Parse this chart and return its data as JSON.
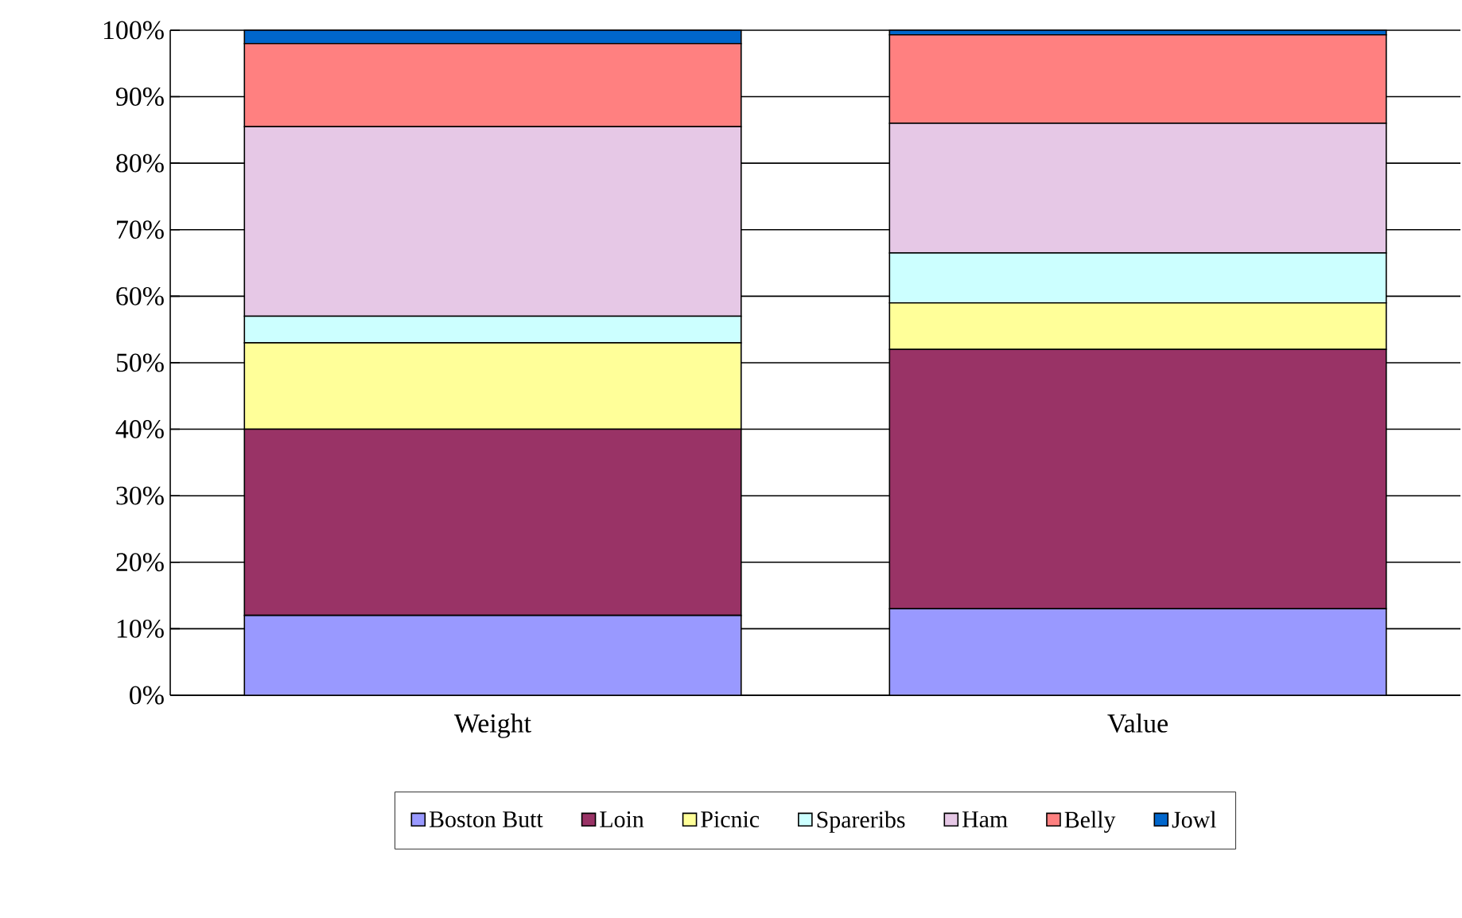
{
  "chart_data": {
    "type": "bar",
    "stacked": true,
    "categories": [
      "Weight",
      "Value"
    ],
    "series": [
      {
        "name": "Boston Butt",
        "color": "#9999ff",
        "values": [
          12,
          13
        ]
      },
      {
        "name": "Loin",
        "color": "#993366",
        "values": [
          28,
          39
        ]
      },
      {
        "name": "Picnic",
        "color": "#ffff99",
        "values": [
          13,
          7
        ]
      },
      {
        "name": "Spareribs",
        "color": "#ccffff",
        "values": [
          4,
          7.5
        ]
      },
      {
        "name": "Ham",
        "color": "#e6c8e6",
        "values": [
          28.5,
          19.5
        ]
      },
      {
        "name": "Belly",
        "color": "#ff8080",
        "values": [
          12.5,
          13.3
        ]
      },
      {
        "name": "Jowl",
        "color": "#0066cc",
        "values": [
          2,
          0.7
        ]
      }
    ],
    "ylim": [
      0,
      100
    ],
    "yticks": [
      {
        "value": 0,
        "label": "0%"
      },
      {
        "value": 10,
        "label": "10%"
      },
      {
        "value": 20,
        "label": "20%"
      },
      {
        "value": 30,
        "label": "30%"
      },
      {
        "value": 40,
        "label": "40%"
      },
      {
        "value": 50,
        "label": "50%"
      },
      {
        "value": 60,
        "label": "60%"
      },
      {
        "value": 70,
        "label": "70%"
      },
      {
        "value": 80,
        "label": "80%"
      },
      {
        "value": 90,
        "label": "90%"
      },
      {
        "value": 100,
        "label": "100%"
      }
    ],
    "grid": "y",
    "legend": "bottom"
  }
}
